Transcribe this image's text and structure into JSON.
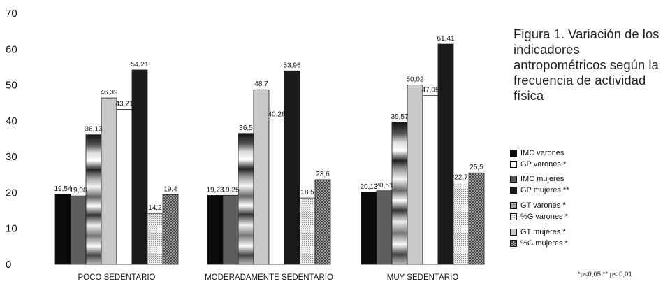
{
  "caption": "Figura 1. Variación de los indicadores antropométricos según la frecuencia de actividad física",
  "footnote": "*p<0,05  ** p< 0,01",
  "chart_data": {
    "type": "bar",
    "title": "",
    "xlabel": "",
    "ylabel": "",
    "ylim": [
      0,
      70
    ],
    "yticks": [
      0,
      10,
      20,
      30,
      40,
      50,
      60,
      70
    ],
    "grid": false,
    "legend_position": "right",
    "categories": [
      "POCO SEDENTARIO",
      "MODERADAMENTE  SEDENTARIO",
      "MUY SEDENTARIO"
    ],
    "series": [
      {
        "name": "IMC varones",
        "suffix": "",
        "values": [
          19.54,
          19.23,
          20.13
        ],
        "labels": [
          "19,54",
          "19,23",
          "20,13"
        ],
        "fill": "#0b0b0b"
      },
      {
        "name": "IMC mujeres",
        "suffix": "",
        "values": [
          19.08,
          19.25,
          20.51
        ],
        "labels": [
          "19,08",
          "19,25",
          "20,51"
        ],
        "fill": "#5e5e5e"
      },
      {
        "name": "GT varones",
        "suffix": "*",
        "values": [
          36.13,
          36.5,
          39.57
        ],
        "labels": [
          "36,13",
          "36,5",
          "39,57"
        ],
        "fill": "url(#grad-gt)"
      },
      {
        "name": "GT mujeres",
        "suffix": "*",
        "values": [
          46.39,
          48.7,
          50.02
        ],
        "labels": [
          "46,39",
          "48,7",
          "50,02"
        ],
        "fill": "#c8c8c8"
      },
      {
        "name": "GP varones",
        "suffix": "*",
        "values": [
          43.21,
          40.26,
          47.05
        ],
        "labels": [
          "43,21",
          "40,26",
          "47,05"
        ],
        "fill": "#ffffff"
      },
      {
        "name": "GP mujeres",
        "suffix": "**",
        "values": [
          54.21,
          53.96,
          61.41
        ],
        "labels": [
          "54,21",
          "53,96",
          "61,41"
        ],
        "fill": "#1a1a1a"
      },
      {
        "name": "%G varones",
        "suffix": "*",
        "values": [
          14.2,
          18.5,
          22.7
        ],
        "labels": [
          "14,2",
          "18,5",
          "22,7"
        ],
        "fill": "url(#pat-dots)"
      },
      {
        "name": "%G mujeres",
        "suffix": "*",
        "values": [
          19.4,
          23.6,
          25.5
        ],
        "labels": [
          "19,4",
          "23,6",
          "25,5"
        ],
        "fill": "url(#pat-check)"
      }
    ],
    "legend_order": [
      0,
      4,
      1,
      5,
      2,
      6,
      3,
      7
    ]
  }
}
